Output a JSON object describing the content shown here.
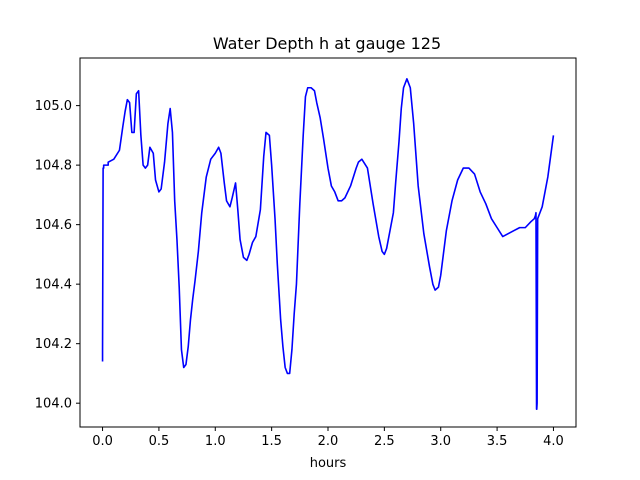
{
  "chart_data": {
    "type": "line",
    "title": "Water Depth h at gauge 125",
    "xlabel": "hours",
    "ylabel": "",
    "xlim": [
      -0.2,
      4.2
    ],
    "ylim": [
      103.92,
      105.16
    ],
    "xticks": [
      0.0,
      0.5,
      1.0,
      1.5,
      2.0,
      2.5,
      3.0,
      3.5,
      4.0
    ],
    "xtick_labels": [
      "0.0",
      "0.5",
      "1.0",
      "1.5",
      "2.0",
      "2.5",
      "3.0",
      "3.5",
      "4.0"
    ],
    "yticks": [
      104.0,
      104.2,
      104.4,
      104.6,
      104.8,
      105.0
    ],
    "ytick_labels": [
      "104.0",
      "104.2",
      "104.4",
      "104.6",
      "104.8",
      "105.0"
    ],
    "grid": false,
    "legend": "none",
    "series": [
      {
        "color": "#0000ff",
        "x": [
          0.0,
          0.0,
          0.005,
          0.01,
          0.01,
          0.02,
          0.05,
          0.05,
          0.1,
          0.15,
          0.18,
          0.2,
          0.22,
          0.24,
          0.26,
          0.28,
          0.3,
          0.32,
          0.34,
          0.36,
          0.38,
          0.4,
          0.42,
          0.45,
          0.47,
          0.5,
          0.52,
          0.55,
          0.58,
          0.6,
          0.62,
          0.64,
          0.66,
          0.68,
          0.7,
          0.72,
          0.74,
          0.76,
          0.78,
          0.8,
          0.82,
          0.85,
          0.88,
          0.92,
          0.96,
          1.0,
          1.03,
          1.05,
          1.08,
          1.1,
          1.13,
          1.15,
          1.18,
          1.2,
          1.22,
          1.25,
          1.28,
          1.3,
          1.33,
          1.36,
          1.4,
          1.43,
          1.45,
          1.48,
          1.5,
          1.53,
          1.55,
          1.58,
          1.6,
          1.62,
          1.64,
          1.66,
          1.68,
          1.7,
          1.72,
          1.75,
          1.78,
          1.8,
          1.82,
          1.85,
          1.88,
          1.9,
          1.93,
          1.96,
          2.0,
          2.03,
          2.06,
          2.09,
          2.12,
          2.15,
          2.2,
          2.25,
          2.27,
          2.3,
          2.35,
          2.4,
          2.45,
          2.48,
          2.5,
          2.52,
          2.55,
          2.58,
          2.6,
          2.63,
          2.65,
          2.67,
          2.7,
          2.73,
          2.76,
          2.8,
          2.85,
          2.9,
          2.93,
          2.95,
          2.98,
          3.0,
          3.05,
          3.1,
          3.15,
          3.2,
          3.25,
          3.3,
          3.35,
          3.4,
          3.45,
          3.5,
          3.55,
          3.6,
          3.65,
          3.7,
          3.75,
          3.8,
          3.83,
          3.84,
          3.845,
          3.85,
          3.852,
          3.855,
          3.86,
          3.88,
          3.9,
          3.95,
          4.0
        ],
        "y": [
          104.14,
          104.18,
          104.79,
          104.79,
          104.8,
          104.8,
          104.8,
          104.81,
          104.82,
          104.85,
          104.93,
          104.98,
          105.02,
          105.01,
          104.91,
          104.91,
          105.04,
          105.05,
          104.9,
          104.8,
          104.79,
          104.8,
          104.86,
          104.84,
          104.75,
          104.71,
          104.72,
          104.81,
          104.94,
          104.99,
          104.91,
          104.68,
          104.55,
          104.39,
          104.18,
          104.12,
          104.13,
          104.19,
          104.28,
          104.35,
          104.41,
          104.51,
          104.64,
          104.76,
          104.82,
          104.84,
          104.86,
          104.84,
          104.74,
          104.68,
          104.66,
          104.69,
          104.74,
          104.65,
          104.55,
          104.49,
          104.48,
          104.5,
          104.54,
          104.56,
          104.65,
          104.83,
          104.91,
          104.9,
          104.8,
          104.62,
          104.47,
          104.28,
          104.19,
          104.12,
          104.1,
          104.1,
          104.18,
          104.3,
          104.4,
          104.67,
          104.9,
          105.03,
          105.06,
          105.06,
          105.05,
          105.01,
          104.96,
          104.89,
          104.79,
          104.73,
          104.71,
          104.68,
          104.68,
          104.69,
          104.73,
          104.79,
          104.81,
          104.82,
          104.79,
          104.67,
          104.56,
          104.51,
          104.5,
          104.52,
          104.58,
          104.64,
          104.74,
          104.88,
          104.99,
          105.06,
          105.09,
          105.06,
          104.94,
          104.73,
          104.57,
          104.46,
          104.4,
          104.38,
          104.39,
          104.43,
          104.58,
          104.68,
          104.75,
          104.79,
          104.79,
          104.77,
          104.71,
          104.67,
          104.62,
          104.59,
          104.56,
          104.57,
          104.58,
          104.59,
          104.59,
          104.61,
          104.62,
          104.63,
          104.64,
          103.98,
          103.98,
          104.0,
          104.62,
          104.64,
          104.66,
          104.76,
          104.9
        ]
      }
    ]
  }
}
